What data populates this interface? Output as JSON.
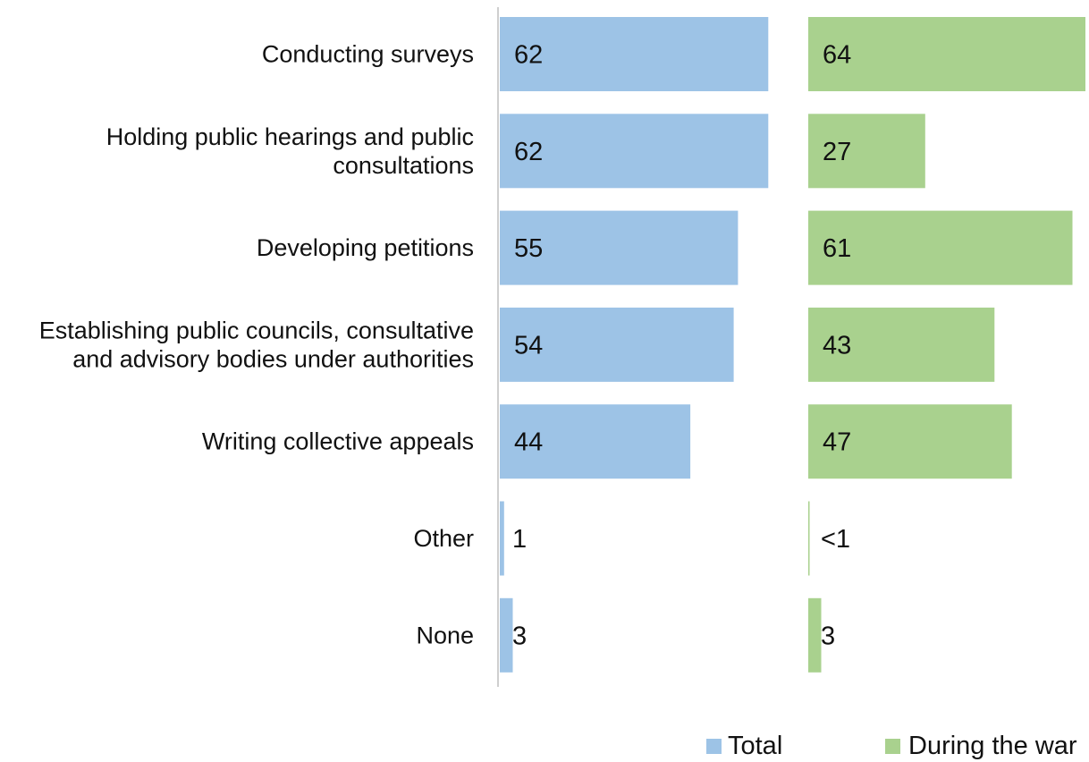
{
  "chart_data": {
    "type": "bar",
    "orientation": "horizontal",
    "layout": "paired-panels",
    "categories": [
      [
        "Conducting surveys"
      ],
      [
        "Holding public hearings and public",
        "consultations"
      ],
      [
        "Developing petitions"
      ],
      [
        "Establishing public councils, consultative",
        "and advisory bodies under authorities"
      ],
      [
        "Writing collective appeals"
      ],
      [
        "Other"
      ],
      [
        "None"
      ]
    ],
    "series": [
      {
        "name": "Total",
        "color": "#9dc3e6",
        "values": [
          62,
          62,
          55,
          54,
          44,
          1,
          3
        ],
        "labels": [
          "62",
          "62",
          "55",
          "54",
          "44",
          "1",
          "3"
        ]
      },
      {
        "name": "During the war",
        "color": "#a9d18e",
        "values": [
          64,
          27,
          61,
          43,
          47,
          0.3,
          3
        ],
        "labels": [
          "64",
          "27",
          "61",
          "43",
          "47",
          "<1",
          "3"
        ]
      }
    ],
    "xlim": [
      0,
      64
    ],
    "grid": false,
    "legend_position": "bottom-right",
    "axis_color": "#bfbfbf"
  }
}
